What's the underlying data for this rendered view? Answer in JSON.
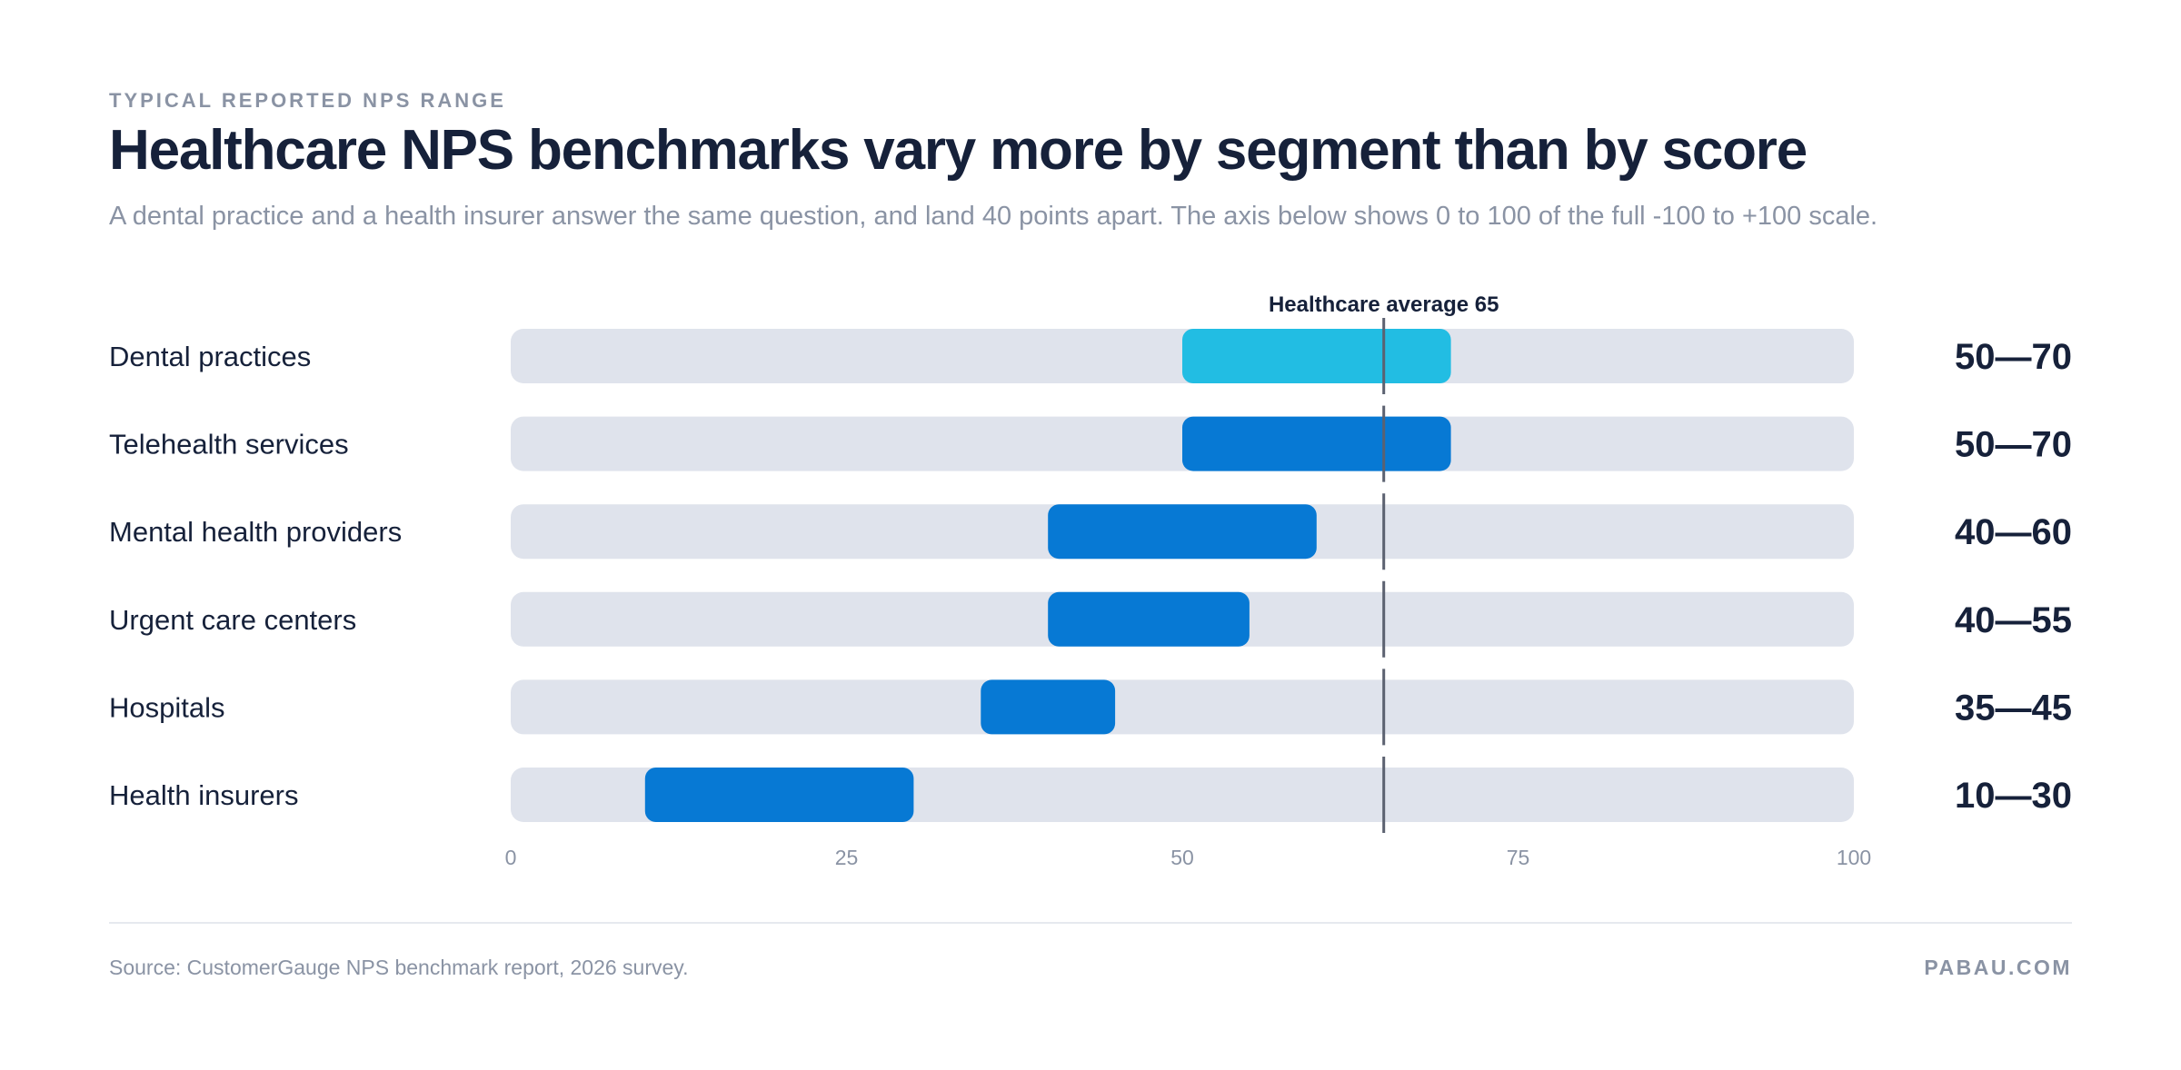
{
  "header": {
    "eyebrow": "TYPICAL REPORTED NPS RANGE",
    "title": "Healthcare NPS benchmarks vary more by segment than by score",
    "subtitle": "A dental practice and a health insurer answer the same question, and land 40 points apart. The axis below shows 0 to 100 of the full -100 to +100 scale."
  },
  "footer": {
    "source": "Source: CustomerGauge NPS benchmark report, 2026 survey.",
    "brand": "PABAU.COM"
  },
  "colors": {
    "track": "#dfe3ec",
    "bar": "#0779d4",
    "bar_highlight": "#22bde3",
    "reference_line": "#5b6170",
    "axis_text": "#8a93a4",
    "label_text": "#16213a"
  },
  "chart_data": {
    "type": "bar",
    "orientation": "horizontal-range",
    "categories": [
      "Dental practices",
      "Telehealth services",
      "Mental health providers",
      "Urgent care centers",
      "Hospitals",
      "Health insurers"
    ],
    "ranges": [
      [
        50,
        70
      ],
      [
        50,
        70
      ],
      [
        40,
        60
      ],
      [
        40,
        55
      ],
      [
        35,
        45
      ],
      [
        10,
        30
      ]
    ],
    "range_labels": [
      "50—70",
      "50—70",
      "40—60",
      "40—55",
      "35—45",
      "10—30"
    ],
    "highlight_index": 0,
    "xlim": [
      0,
      100
    ],
    "xticks": [
      0,
      25,
      50,
      75,
      100
    ],
    "reference": {
      "label": "Healthcare average 65",
      "value": 65
    },
    "grid": false
  }
}
